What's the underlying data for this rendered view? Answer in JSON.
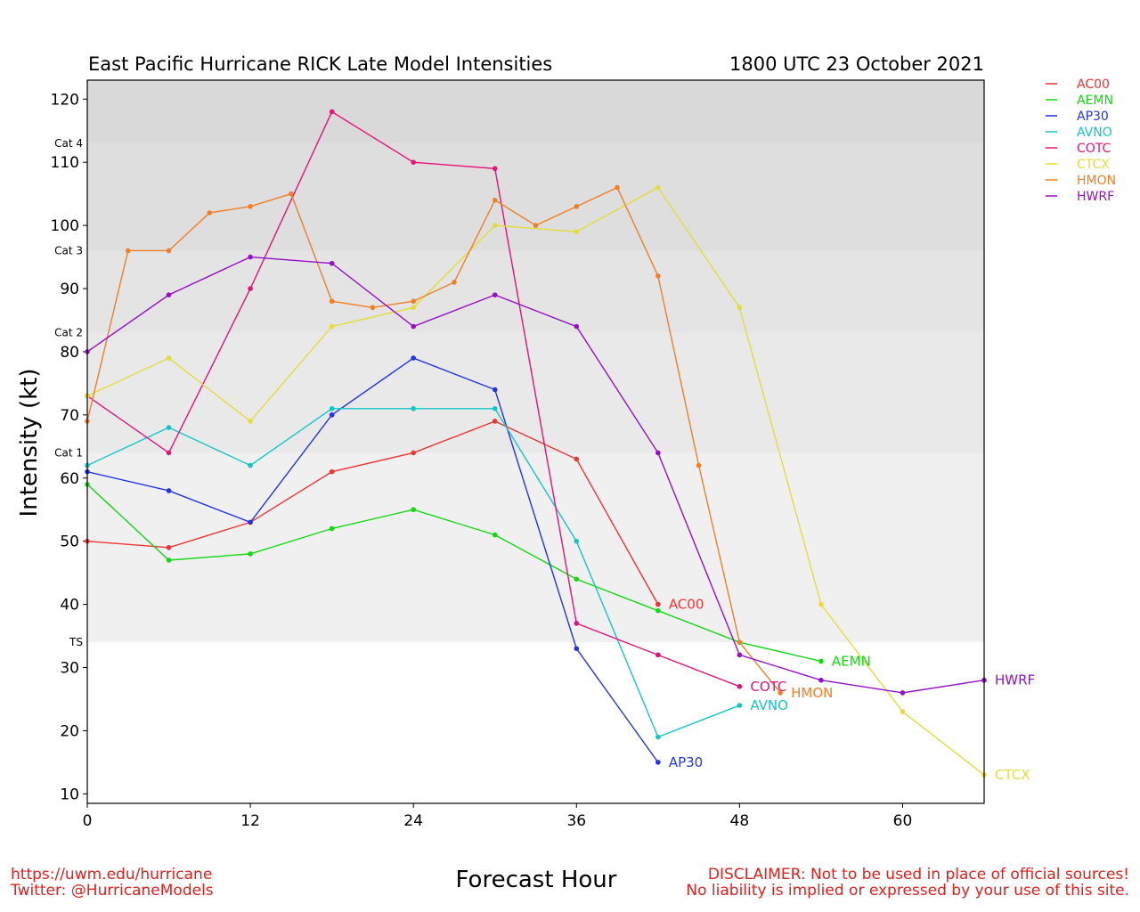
{
  "chart_data": {
    "type": "line",
    "title": "East Pacific Hurricane RICK Late Model Intensities",
    "date": "1800 UTC 23 October 2021",
    "xlabel": "Forecast Hour",
    "ylabel": "Intensity (kt)",
    "xlim": [
      0,
      66
    ],
    "ylim": [
      8.5,
      123
    ],
    "xticks": [
      0,
      12,
      24,
      36,
      48,
      60
    ],
    "yticks": [
      10,
      20,
      30,
      40,
      50,
      60,
      70,
      80,
      90,
      100,
      110,
      120
    ],
    "legend_position": "right-top",
    "categories": [
      {
        "label": "TS",
        "min": 34,
        "max": 64,
        "color": "#f0f0f0"
      },
      {
        "label": "Cat 1",
        "min": 64,
        "max": 83,
        "color": "#e9e9e9"
      },
      {
        "label": "Cat 2",
        "min": 83,
        "max": 96,
        "color": "#e4e4e4"
      },
      {
        "label": "Cat 3",
        "min": 96,
        "max": 113,
        "color": "#dedede"
      },
      {
        "label": "Cat 4",
        "min": 113,
        "max": 123,
        "color": "#d9d9d9"
      }
    ],
    "series": [
      {
        "name": "AC00",
        "color": "#f03434",
        "x": [
          0,
          6,
          12,
          18,
          24,
          30,
          36,
          42
        ],
        "y": [
          50,
          49,
          53,
          61,
          64,
          69,
          63,
          40
        ]
      },
      {
        "name": "AEMN",
        "color": "#13d813",
        "x": [
          0,
          6,
          12,
          18,
          24,
          30,
          36,
          42,
          48,
          54
        ],
        "y": [
          59,
          47,
          48,
          52,
          55,
          51,
          44,
          39,
          34,
          31
        ]
      },
      {
        "name": "AP30",
        "color": "#2433e6",
        "x": [
          0,
          6,
          12,
          18,
          24,
          30,
          36,
          42
        ],
        "y": [
          61,
          58,
          53,
          70,
          79,
          74,
          33,
          15
        ]
      },
      {
        "name": "AVNO",
        "color": "#13c6c6",
        "x": [
          0,
          6,
          12,
          18,
          24,
          30,
          36,
          42,
          48
        ],
        "y": [
          62,
          68,
          62,
          71,
          71,
          71,
          50,
          19,
          24
        ]
      },
      {
        "name": "COTC",
        "color": "#e6127a",
        "x": [
          0,
          6,
          12,
          18,
          24,
          30,
          36,
          42,
          48
        ],
        "y": [
          73,
          64,
          90,
          118,
          110,
          109,
          37,
          32,
          27
        ]
      },
      {
        "name": "CTCX",
        "color": "#e3dc3a",
        "x": [
          0,
          6,
          12,
          18,
          24,
          30,
          36,
          42,
          48,
          54,
          60,
          66
        ],
        "y": [
          73,
          79,
          69,
          84,
          87,
          100,
          99,
          106,
          87,
          40,
          23,
          13
        ]
      },
      {
        "name": "HMON",
        "color": "#f07f26",
        "x": [
          0,
          3,
          6,
          9,
          12,
          15,
          18,
          21,
          24,
          27,
          30,
          33,
          36,
          39,
          42,
          45,
          48,
          51
        ],
        "y": [
          69,
          96,
          96,
          102,
          103,
          105,
          88,
          87,
          88,
          91,
          104,
          100,
          103,
          106,
          92,
          62,
          34,
          26
        ]
      },
      {
        "name": "HWRF",
        "color": "#9410c8",
        "x": [
          0,
          6,
          12,
          18,
          24,
          30,
          36,
          42,
          48,
          54,
          60,
          66
        ],
        "y": [
          80,
          89,
          95,
          94,
          84,
          89,
          84,
          64,
          32,
          28,
          26,
          28
        ]
      }
    ]
  },
  "footer": {
    "url": "https://uwm.edu/hurricane",
    "twitter": "Twitter: @HurricaneModels",
    "disclaimer_line1": "DISCLAIMER: Not to be used in place of official sources!",
    "disclaimer_line2": "No liability is implied or expressed by your use of this site."
  }
}
